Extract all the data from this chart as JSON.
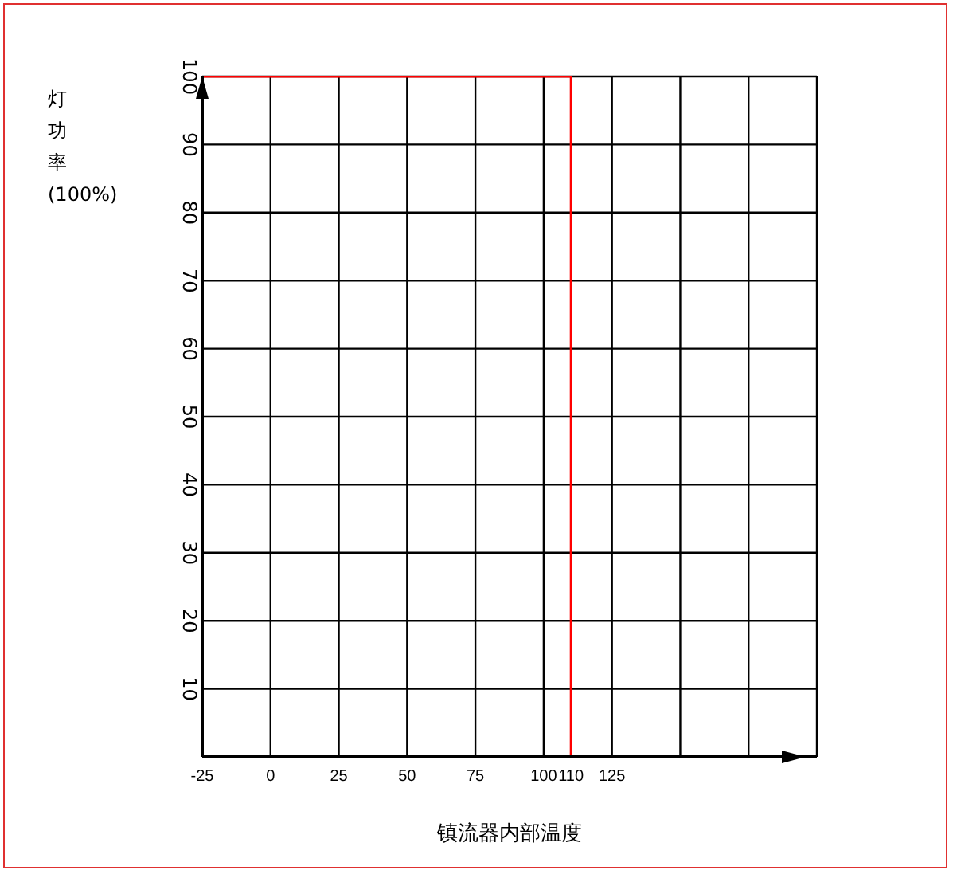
{
  "chart_data": {
    "type": "line",
    "xlabel": "镇流器内部温度",
    "ylabel": "灯功率(100%)",
    "x": [
      -25,
      110,
      110,
      175
    ],
    "series": [
      {
        "color": "#ff0000",
        "values": [
          100,
          100,
          0,
          0
        ]
      }
    ],
    "xlim": [
      -25,
      200
    ],
    "xticks": [
      -25,
      0,
      25,
      50,
      75,
      100,
      110,
      125,
      {
        "value": 150,
        "label": null
      },
      {
        "value": 175,
        "label": null
      },
      {
        "value": 200,
        "label": null
      }
    ],
    "ylim": [
      0,
      100
    ],
    "yticks": [
      10,
      20,
      30,
      40,
      50,
      60,
      70,
      80,
      90,
      100
    ],
    "grid": true,
    "marker": "none",
    "line_style": "solid"
  }
}
